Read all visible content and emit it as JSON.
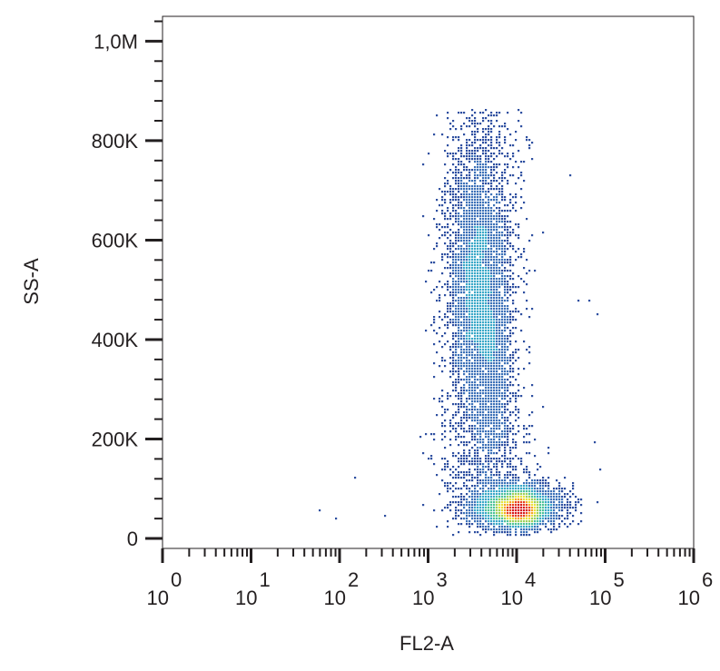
{
  "chart_data": {
    "type": "scatter",
    "style": "density-colored dot plot (flow cytometry)",
    "xlabel": "FL2-A",
    "ylabel": "SS-A",
    "xscale": "log",
    "xlim": [
      1,
      1000000
    ],
    "ylim": [
      -20000,
      1050000
    ],
    "grid": false,
    "x_ticks": [
      {
        "base": "10",
        "exp": "0",
        "value": 1
      },
      {
        "base": "10",
        "exp": "1",
        "value": 10
      },
      {
        "base": "10",
        "exp": "2",
        "value": 100
      },
      {
        "base": "10",
        "exp": "3",
        "value": 1000
      },
      {
        "base": "10",
        "exp": "4",
        "value": 10000
      },
      {
        "base": "10",
        "exp": "5",
        "value": 100000
      },
      {
        "base": "10",
        "exp": "6",
        "value": 1000000
      }
    ],
    "y_ticks": [
      {
        "label": "0",
        "value": 0
      },
      {
        "label": "200K",
        "value": 200000
      },
      {
        "label": "400K",
        "value": 400000
      },
      {
        "label": "600K",
        "value": 600000
      },
      {
        "label": "800K",
        "value": 800000
      },
      {
        "label": "1,0M",
        "value": 1000000
      }
    ],
    "density_colors": [
      "#2e4fa0",
      "#3d72b8",
      "#3aa8c8",
      "#4ec39a",
      "#9fd15a",
      "#e9e23a",
      "#f5a623",
      "#e8401f",
      "#d7191c"
    ],
    "populations": [
      {
        "x_center": 4000,
        "x_log_spread": 0.2,
        "y_center": 560000,
        "y_spread": 170000,
        "y_min": 200000,
        "y_max": 860000,
        "count": 3200
      },
      {
        "x_center": 3300,
        "x_log_spread": 0.13,
        "y_center": 470000,
        "y_spread": 100000,
        "y_min": 250000,
        "y_max": 700000,
        "count": 1200
      },
      {
        "x_center": 5500,
        "x_log_spread": 0.11,
        "y_center": 360000,
        "y_spread": 110000,
        "y_min": 150000,
        "y_max": 600000,
        "count": 800
      },
      {
        "x_center": 4500,
        "x_log_spread": 0.25,
        "y_center": 170000,
        "y_spread": 80000,
        "y_min": 100000,
        "y_max": 320000,
        "count": 700
      },
      {
        "x_center": 9000,
        "x_log_spread": 0.28,
        "y_center": 65000,
        "y_spread": 25000,
        "y_min": 5000,
        "y_max": 160000,
        "count": 2600
      },
      {
        "x_center": 11000,
        "x_log_spread": 0.13,
        "y_center": 55000,
        "y_spread": 15000,
        "y_min": 15000,
        "y_max": 110000,
        "count": 1600
      }
    ],
    "outliers": [
      {
        "x": 60,
        "y": 55000
      },
      {
        "x": 90,
        "y": 40000
      },
      {
        "x": 150,
        "y": 120000
      },
      {
        "x": 330,
        "y": 45000
      },
      {
        "x": 900,
        "y": 650000
      },
      {
        "x": 40000,
        "y": 730000
      },
      {
        "x": 65000,
        "y": 480000
      },
      {
        "x": 80000,
        "y": 450000
      },
      {
        "x": 50000,
        "y": 480000
      },
      {
        "x": 90000,
        "y": 140000
      },
      {
        "x": 78000,
        "y": 190000
      }
    ]
  }
}
